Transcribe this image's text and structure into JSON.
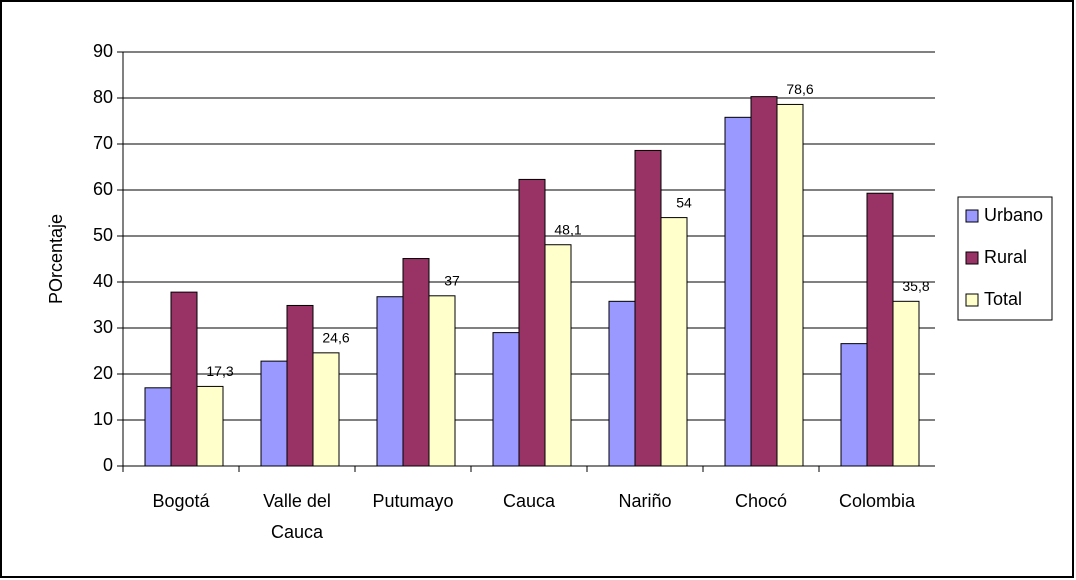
{
  "chart_data": {
    "type": "bar",
    "y_label": "POrcentaje",
    "categories": [
      "Bogotá",
      "Valle del Cauca",
      "Putumayo",
      "Cauca",
      "Nariño",
      "Chocó",
      "Colombia"
    ],
    "series": [
      {
        "name": "Urbano",
        "color": "#9999ff",
        "values": [
          17,
          22.8,
          36.8,
          29,
          35.8,
          75.8,
          26.6
        ]
      },
      {
        "name": "Rural",
        "color": "#993366",
        "values": [
          37.8,
          34.9,
          45.1,
          62.3,
          68.6,
          80.3,
          59.3
        ]
      },
      {
        "name": "Total",
        "color": "#ffffcc",
        "values": [
          17.3,
          24.6,
          37,
          48.1,
          54,
          78.6,
          35.8
        ],
        "value_labels": [
          "17,3",
          "24,6",
          "37",
          "48,1",
          "54",
          "78,6",
          "35,8"
        ]
      }
    ],
    "ylim": [
      0,
      90
    ],
    "yticks": [
      0,
      10,
      20,
      30,
      40,
      50,
      60,
      70,
      80,
      90
    ],
    "grid": true,
    "legend": "right"
  }
}
